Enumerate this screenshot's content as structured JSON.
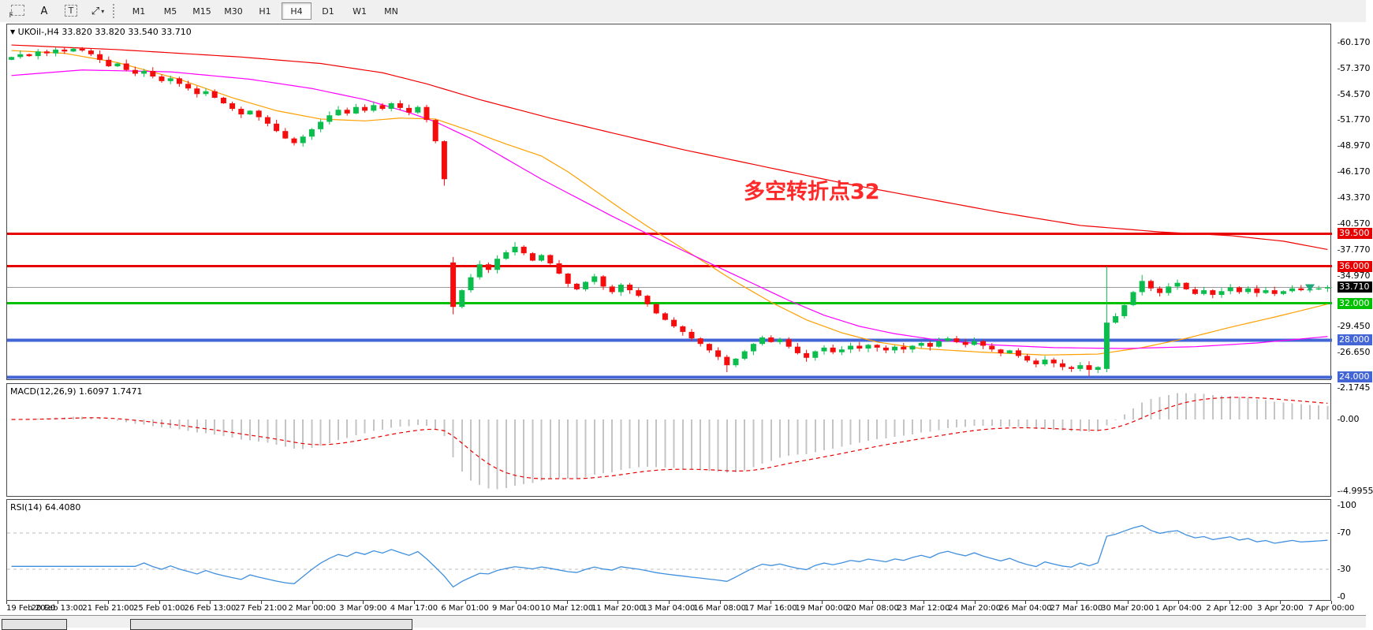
{
  "toolbar": {
    "icons": {
      "grid_f": "F",
      "text_a": "A",
      "label_t": "T",
      "arrows": "⤢",
      "caret": "▾"
    },
    "timeframes": [
      {
        "label": "M1"
      },
      {
        "label": "M5"
      },
      {
        "label": "M15"
      },
      {
        "label": "M30"
      },
      {
        "label": "H1"
      },
      {
        "label": "H4"
      },
      {
        "label": "D1"
      },
      {
        "label": "W1"
      },
      {
        "label": "MN"
      }
    ],
    "active_timeframe": "H4"
  },
  "chart": {
    "title": {
      "collapse_glyph": "▼",
      "symbol_period": "UKOil-,H4",
      "ohlc": "33.820 33.820 33.540 33.710"
    },
    "annotation": {
      "text": "多空转折点32",
      "color": "#fe2a2a"
    }
  },
  "panels": {
    "macd_label": "MACD(12,26,9) 1.6097 1.7471",
    "rsi_label": "RSI(14) 64.4080"
  },
  "chart_data": {
    "type": "candlestick",
    "symbol": "UKOil-",
    "timeframe": "H4",
    "ohlc_display": {
      "open": "33.820",
      "high": "33.820",
      "low": "33.540",
      "close": "33.710"
    },
    "colors": {
      "up": "#0bbd4c",
      "down": "#f50c0c",
      "ma_fast": "#ff9f00",
      "ma_mid": "#ff00ff",
      "ma_slow": "#f00000",
      "level_red": "#e60000",
      "level_green": "#00c000",
      "level_blue": "#4365d6",
      "bid_line": "#9a9a9a",
      "macd_hist": "#c4c4c4",
      "macd_signal": "#e60000",
      "rsi_line": "#3f8fde",
      "rsi_grid": "#bcbcbc",
      "marker": "#1fa87a"
    },
    "y_ticks": [
      {
        "text": "60.170",
        "value": 60.17
      },
      {
        "text": "57.370",
        "value": 57.37
      },
      {
        "text": "54.570",
        "value": 54.57
      },
      {
        "text": "51.770",
        "value": 51.77
      },
      {
        "text": "48.970",
        "value": 48.97
      },
      {
        "text": "46.170",
        "value": 46.17
      },
      {
        "text": "43.370",
        "value": 43.37
      },
      {
        "text": "40.570",
        "value": 40.57
      },
      {
        "text": "37.770",
        "value": 37.77
      },
      {
        "text": "34.970",
        "value": 34.97
      },
      {
        "text": "29.450",
        "value": 29.45
      },
      {
        "text": "26.650",
        "value": 26.65
      }
    ],
    "levels": [
      {
        "label": "39.500",
        "value": 39.5,
        "color": "#e60000",
        "thickness": 3
      },
      {
        "label": "36.000",
        "value": 36.0,
        "color": "#e60000",
        "thickness": 3
      },
      {
        "label": "32.000",
        "value": 32.0,
        "color": "#00c000",
        "thickness": 3
      },
      {
        "label": "28.000",
        "value": 28.0,
        "color": "#4365d6",
        "thickness": 4
      },
      {
        "label": "24.000",
        "value": 24.0,
        "color": "#4365d6",
        "thickness": 4
      }
    ],
    "current_price": {
      "label": "33.710",
      "value": 33.71,
      "badge_color": "#000000"
    },
    "x_ticks": [
      "19 Feb 2020",
      "20 Feb 13:00",
      "21 Feb 21:00",
      "25 Feb 01:00",
      "26 Feb 13:00",
      "27 Feb 21:00",
      "2 Mar 00:00",
      "3 Mar 09:00",
      "4 Mar 17:00",
      "6 Mar 01:00",
      "9 Mar 04:00",
      "10 Mar 12:00",
      "11 Mar 20:00",
      "13 Mar 04:00",
      "16 Mar 08:00",
      "17 Mar 16:00",
      "19 Mar 00:00",
      "20 Mar 08:00",
      "23 Mar 12:00",
      "24 Mar 20:00",
      "26 Mar 04:00",
      "27 Mar 16:00",
      "30 Mar 20:00",
      "1 Apr 04:00",
      "2 Apr 12:00",
      "3 Apr 20:00",
      "7 Apr 00:00"
    ],
    "candles": {
      "first_open": 58.3,
      "closes": [
        58.6,
        58.9,
        58.7,
        59.2,
        59.0,
        59.4,
        59.2,
        59.5,
        59.3,
        58.9,
        58.3,
        57.6,
        57.9,
        57.2,
        56.8,
        57.1,
        56.5,
        56.0,
        56.3,
        55.7,
        55.2,
        54.6,
        54.9,
        54.2,
        53.6,
        53.0,
        52.4,
        52.8,
        52.1,
        51.4,
        50.6,
        49.8,
        49.3,
        50.0,
        50.8,
        51.6,
        52.3,
        52.9,
        52.5,
        53.2,
        52.8,
        53.4,
        53.0,
        53.6,
        53.1,
        52.6,
        53.2,
        51.8,
        49.5,
        45.4,
        31.6,
        33.4,
        34.8,
        36.2,
        35.6,
        36.8,
        37.5,
        38.1,
        37.4,
        36.6,
        37.2,
        36.3,
        35.2,
        34.1,
        33.5,
        34.3,
        34.9,
        33.8,
        33.2,
        34.0,
        33.4,
        32.8,
        31.9,
        30.9,
        30.2,
        29.5,
        28.9,
        28.2,
        27.6,
        26.9,
        26.2,
        25.3,
        26.0,
        26.8,
        27.6,
        28.3,
        27.8,
        28.1,
        27.3,
        26.6,
        26.1,
        26.8,
        27.2,
        26.7,
        27.0,
        27.4,
        27.1,
        27.5,
        27.2,
        26.9,
        27.3,
        27.0,
        27.4,
        27.7,
        27.3,
        27.9,
        28.2,
        27.8,
        27.5,
        27.9,
        27.4,
        27.0,
        26.6,
        26.9,
        26.3,
        25.8,
        25.4,
        25.9,
        25.5,
        25.1,
        24.9,
        25.3,
        24.8,
        25.1,
        29.9,
        30.6,
        31.8,
        33.2,
        34.4,
        33.6,
        33.1,
        33.8,
        34.2,
        33.5,
        33.0,
        33.4,
        32.9,
        33.3,
        33.7,
        33.2,
        33.6,
        33.1,
        33.4,
        33.0,
        33.3,
        33.6,
        33.4,
        33.5,
        33.6,
        33.71
      ],
      "overrides": {
        "49": {
          "l": 44.7
        },
        "50": {
          "o": 36.4,
          "h": 37.0,
          "l": 30.8
        },
        "53": {
          "h": 36.6
        },
        "57": {
          "h": 38.6
        },
        "81": {
          "l": 24.55
        },
        "122": {
          "l": 24.15
        },
        "124": {
          "o": 24.9,
          "h": 36.0,
          "l": 24.55
        },
        "128": {
          "h": 35.05
        }
      }
    },
    "moving_averages": [
      {
        "name": "fast",
        "points": [
          [
            0,
            59.3
          ],
          [
            6,
            59.0
          ],
          [
            12,
            58.0
          ],
          [
            19,
            56.2
          ],
          [
            25,
            54.2
          ],
          [
            30,
            52.8
          ],
          [
            35,
            51.9
          ],
          [
            40,
            51.7
          ],
          [
            44,
            52.0
          ],
          [
            48,
            51.9
          ],
          [
            52,
            50.6
          ],
          [
            56,
            49.2
          ],
          [
            60,
            47.9
          ],
          [
            63,
            46.2
          ],
          [
            66,
            44.2
          ],
          [
            69,
            42.2
          ],
          [
            72,
            40.3
          ],
          [
            75,
            38.5
          ],
          [
            78,
            36.7
          ],
          [
            82,
            34.3
          ],
          [
            86,
            32.1
          ],
          [
            90,
            30.2
          ],
          [
            94,
            28.8
          ],
          [
            98,
            27.8
          ],
          [
            103,
            27.1
          ],
          [
            110,
            26.7
          ],
          [
            117,
            26.4
          ],
          [
            123,
            26.5
          ],
          [
            128,
            27.2
          ],
          [
            133,
            28.2
          ],
          [
            138,
            29.4
          ],
          [
            143,
            30.5
          ],
          [
            149,
            31.9
          ]
        ]
      },
      {
        "name": "mid",
        "points": [
          [
            0,
            56.6
          ],
          [
            8,
            57.2
          ],
          [
            18,
            57.0
          ],
          [
            27,
            56.2
          ],
          [
            34,
            55.2
          ],
          [
            40,
            54.0
          ],
          [
            45,
            52.6
          ],
          [
            48,
            51.6
          ],
          [
            52,
            49.8
          ],
          [
            56,
            47.6
          ],
          [
            60,
            45.4
          ],
          [
            64,
            43.4
          ],
          [
            68,
            41.4
          ],
          [
            72,
            39.5
          ],
          [
            76,
            37.7
          ],
          [
            80,
            35.9
          ],
          [
            84,
            34.1
          ],
          [
            88,
            32.3
          ],
          [
            92,
            30.7
          ],
          [
            96,
            29.5
          ],
          [
            100,
            28.7
          ],
          [
            105,
            28.0
          ],
          [
            111,
            27.5
          ],
          [
            118,
            27.2
          ],
          [
            126,
            27.1
          ],
          [
            134,
            27.3
          ],
          [
            141,
            27.7
          ],
          [
            149,
            28.4
          ]
        ]
      },
      {
        "name": "slow",
        "points": [
          [
            0,
            59.9
          ],
          [
            12,
            59.4
          ],
          [
            26,
            58.6
          ],
          [
            35,
            57.9
          ],
          [
            42,
            56.9
          ],
          [
            47,
            55.7
          ],
          [
            53,
            54.0
          ],
          [
            61,
            52.0
          ],
          [
            68,
            50.4
          ],
          [
            76,
            48.6
          ],
          [
            85,
            46.8
          ],
          [
            94,
            45.0
          ],
          [
            103,
            43.4
          ],
          [
            112,
            41.8
          ],
          [
            121,
            40.4
          ],
          [
            130,
            39.7
          ],
          [
            138,
            39.3
          ],
          [
            144,
            38.7
          ],
          [
            149,
            37.8
          ]
        ]
      }
    ],
    "macd": {
      "params": "12,26,9",
      "display_values": "1.6097 1.7471",
      "axis": [
        {
          "text": "2.1745",
          "value": 2.1745
        },
        {
          "text": "0.00",
          "value": 0
        },
        {
          "text": "-4.9955",
          "value": -4.9955
        }
      ]
    },
    "rsi": {
      "params": "14",
      "display_value": "64.4080",
      "axis": [
        {
          "text": "100",
          "value": 100
        },
        {
          "text": "70",
          "value": 70,
          "dashed": true
        },
        {
          "text": "30",
          "value": 30,
          "dashed": true
        },
        {
          "text": "0",
          "value": 0
        }
      ]
    }
  }
}
